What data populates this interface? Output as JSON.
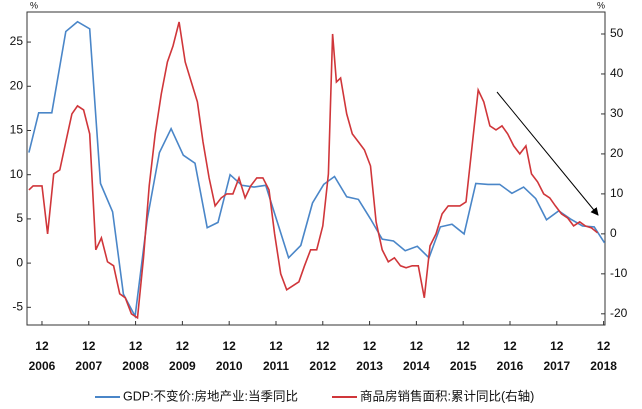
{
  "chart_data": {
    "type": "line",
    "y_unit": "%",
    "y2_unit": "%",
    "xlim": [
      2006.6,
      2018.95
    ],
    "xticks": [
      {
        "value": 2006.92,
        "label": "12"
      },
      {
        "value": 2007.92,
        "label": "12"
      },
      {
        "value": 2008.92,
        "label": "12"
      },
      {
        "value": 2009.92,
        "label": "12"
      },
      {
        "value": 2010.92,
        "label": "12"
      },
      {
        "value": 2011.92,
        "label": "12"
      },
      {
        "value": 2012.92,
        "label": "12"
      },
      {
        "value": 2013.92,
        "label": "12"
      },
      {
        "value": 2014.92,
        "label": "12"
      },
      {
        "value": 2015.92,
        "label": "12"
      },
      {
        "value": 2016.92,
        "label": "12"
      },
      {
        "value": 2017.92,
        "label": "12"
      },
      {
        "value": 2018.92,
        "label": "12"
      }
    ],
    "xtick_years": [
      "2006",
      "2007",
      "2008",
      "2009",
      "2010",
      "2011",
      "2012",
      "2013",
      "2014",
      "2015",
      "2016",
      "2017",
      "2018"
    ],
    "ylim": [
      -7,
      28.4
    ],
    "yticks": [
      -5,
      0,
      5,
      10,
      15,
      20,
      25
    ],
    "y2lim": [
      -22.8,
      55.5
    ],
    "y2ticks": [
      -20,
      -10,
      0,
      10,
      20,
      30,
      40,
      50
    ],
    "series": [
      {
        "name": "GDP:不变价:房地产业:当季同比",
        "color": "#4a86c8",
        "axis": "y",
        "x": [
          2006.64,
          2006.85,
          2007.13,
          2007.43,
          2007.68,
          2007.94,
          2008.17,
          2008.43,
          2008.66,
          2008.91,
          2009.17,
          2009.43,
          2009.68,
          2009.94,
          2010.19,
          2010.45,
          2010.68,
          2010.94,
          2011.19,
          2011.45,
          2011.7,
          2011.94,
          2012.19,
          2012.45,
          2012.7,
          2012.94,
          2013.17,
          2013.43,
          2013.68,
          2013.94,
          2014.19,
          2014.43,
          2014.68,
          2014.94,
          2015.19,
          2015.43,
          2015.68,
          2015.94,
          2016.19,
          2016.45,
          2016.7,
          2016.96,
          2017.21,
          2017.47,
          2017.7,
          2017.96,
          2018.21,
          2018.47,
          2018.72,
          2018.94
        ],
        "values": [
          12.5,
          17,
          17,
          26.2,
          27.3,
          26.5,
          9,
          5.8,
          -3.5,
          -6,
          5,
          12.5,
          15.2,
          12.2,
          11.3,
          4,
          4.6,
          10,
          8.8,
          8.6,
          8.8,
          4.8,
          0.6,
          2,
          6.8,
          8.9,
          9.8,
          7.5,
          7.2,
          5,
          2.7,
          2.5,
          1.4,
          1.9,
          0.6,
          4.1,
          4.4,
          3.3,
          9,
          8.9,
          8.9,
          7.9,
          8.6,
          7.3,
          4.9,
          5.9,
          5,
          4.2,
          4.1,
          2.3
        ]
      },
      {
        "name": "商品房销售面积:累计同比(右轴)",
        "color": "#d0363a",
        "axis": "y2",
        "x": [
          2006.64,
          2006.73,
          2006.92,
          2007.04,
          2007.17,
          2007.3,
          2007.43,
          2007.56,
          2007.68,
          2007.81,
          2007.94,
          2008.07,
          2008.19,
          2008.32,
          2008.45,
          2008.58,
          2008.7,
          2008.83,
          2008.96,
          2009.09,
          2009.21,
          2009.34,
          2009.47,
          2009.6,
          2009.72,
          2009.85,
          2009.98,
          2010.11,
          2010.24,
          2010.36,
          2010.49,
          2010.62,
          2010.75,
          2010.87,
          2011.0,
          2011.13,
          2011.26,
          2011.38,
          2011.51,
          2011.64,
          2011.77,
          2011.89,
          2012.02,
          2012.15,
          2012.28,
          2012.41,
          2012.53,
          2012.66,
          2012.79,
          2012.92,
          2013.04,
          2013.13,
          2013.21,
          2013.3,
          2013.43,
          2013.55,
          2013.68,
          2013.81,
          2013.94,
          2014.06,
          2014.19,
          2014.32,
          2014.45,
          2014.58,
          2014.7,
          2014.83,
          2014.96,
          2015.09,
          2015.21,
          2015.34,
          2015.47,
          2015.6,
          2015.72,
          2015.85,
          2015.98,
          2016.11,
          2016.24,
          2016.36,
          2016.49,
          2016.62,
          2016.75,
          2016.87,
          2017.0,
          2017.13,
          2017.26,
          2017.38,
          2017.51,
          2017.64,
          2017.77,
          2017.89,
          2018.02,
          2018.15,
          2018.28,
          2018.41,
          2018.53,
          2018.66,
          2018.79
        ],
        "values": [
          11,
          12,
          12,
          0,
          15,
          16,
          23,
          30,
          32,
          31,
          25,
          -4,
          -1,
          -7,
          -8,
          -15,
          -16,
          -20,
          -21,
          -6,
          12,
          25,
          35,
          43,
          47,
          53,
          43,
          38,
          33,
          23,
          14,
          7,
          9,
          10,
          10,
          14,
          9,
          12,
          14,
          14,
          11,
          0,
          -10,
          -14,
          -13,
          -12,
          -8,
          -4,
          -4,
          2,
          15,
          50,
          38,
          39,
          30,
          25,
          23,
          21,
          17,
          3,
          -4,
          -7,
          -6,
          -8,
          -8.5,
          -8,
          -8,
          -16,
          -3,
          0,
          5,
          7,
          7,
          7,
          8,
          22,
          36,
          33,
          27,
          26,
          27,
          25,
          22,
          20,
          22,
          15,
          13,
          10,
          9,
          7,
          5,
          4,
          2,
          3,
          2,
          1.5,
          0.3
        ]
      }
    ]
  }
}
